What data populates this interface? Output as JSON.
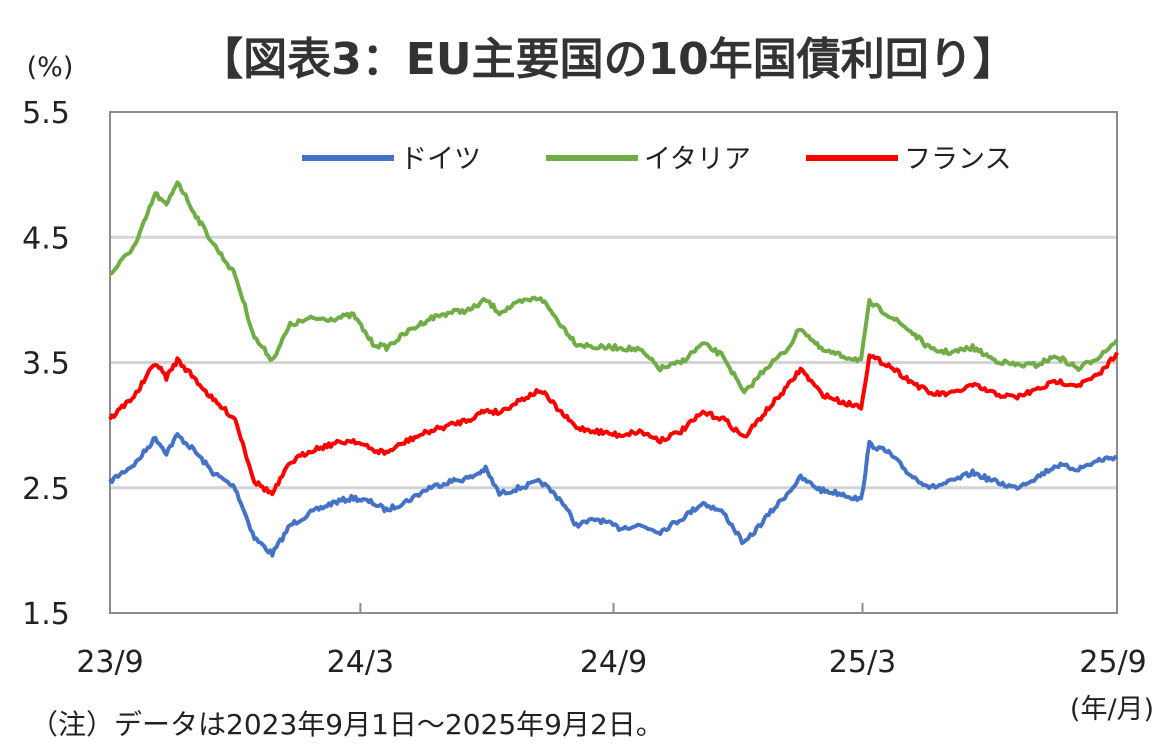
{
  "chart_data": {
    "type": "line",
    "title": "【図表3：EU主要国の10年国債利回り】",
    "y_unit": "(%)",
    "x_unit": "(年/月)",
    "note": "（注）データは2023年9月1日～2025年9月2日。",
    "ylim": [
      1.5,
      5.5
    ],
    "y_ticks": [
      "5.5",
      "4.5",
      "3.5",
      "2.5",
      "1.5"
    ],
    "x_ticks": [
      "23/9",
      "24/3",
      "24/9",
      "25/3",
      "25/9"
    ],
    "x_range": [
      "2023-09-01",
      "2025-09-02"
    ],
    "grid": true,
    "legend_position": "top",
    "series": [
      {
        "name": "ドイツ",
        "color": "#4472C4",
        "points": [
          [
            "2023-09-01",
            2.55
          ],
          [
            "2023-09-20",
            2.7
          ],
          [
            "2023-10-04",
            2.9
          ],
          [
            "2023-10-12",
            2.78
          ],
          [
            "2023-10-20",
            2.92
          ],
          [
            "2023-11-01",
            2.8
          ],
          [
            "2023-11-15",
            2.62
          ],
          [
            "2023-12-01",
            2.5
          ],
          [
            "2023-12-15",
            2.1
          ],
          [
            "2023-12-28",
            1.97
          ],
          [
            "2024-01-10",
            2.2
          ],
          [
            "2024-01-25",
            2.3
          ],
          [
            "2024-02-10",
            2.38
          ],
          [
            "2024-02-25",
            2.42
          ],
          [
            "2024-03-10",
            2.38
          ],
          [
            "2024-03-20",
            2.32
          ],
          [
            "2024-04-05",
            2.4
          ],
          [
            "2024-04-20",
            2.5
          ],
          [
            "2024-05-05",
            2.55
          ],
          [
            "2024-05-20",
            2.58
          ],
          [
            "2024-05-31",
            2.65
          ],
          [
            "2024-06-10",
            2.45
          ],
          [
            "2024-06-25",
            2.5
          ],
          [
            "2024-07-10",
            2.55
          ],
          [
            "2024-07-25",
            2.4
          ],
          [
            "2024-08-05",
            2.2
          ],
          [
            "2024-08-20",
            2.25
          ],
          [
            "2024-09-05",
            2.18
          ],
          [
            "2024-09-20",
            2.2
          ],
          [
            "2024-10-05",
            2.15
          ],
          [
            "2024-10-20",
            2.25
          ],
          [
            "2024-11-05",
            2.38
          ],
          [
            "2024-11-20",
            2.3
          ],
          [
            "2024-12-05",
            2.05
          ],
          [
            "2024-12-20",
            2.25
          ],
          [
            "2025-01-05",
            2.45
          ],
          [
            "2025-01-15",
            2.58
          ],
          [
            "2025-01-30",
            2.48
          ],
          [
            "2025-02-15",
            2.45
          ],
          [
            "2025-02-28",
            2.4
          ],
          [
            "2025-03-06",
            2.85
          ],
          [
            "2025-03-20",
            2.78
          ],
          [
            "2025-04-05",
            2.6
          ],
          [
            "2025-04-20",
            2.5
          ],
          [
            "2025-05-05",
            2.55
          ],
          [
            "2025-05-20",
            2.62
          ],
          [
            "2025-06-05",
            2.55
          ],
          [
            "2025-06-20",
            2.5
          ],
          [
            "2025-07-05",
            2.58
          ],
          [
            "2025-07-20",
            2.68
          ],
          [
            "2025-08-05",
            2.65
          ],
          [
            "2025-08-20",
            2.72
          ],
          [
            "2025-09-02",
            2.75
          ]
        ]
      },
      {
        "name": "イタリア",
        "color": "#70AD47",
        "points": [
          [
            "2023-09-01",
            4.2
          ],
          [
            "2023-09-20",
            4.45
          ],
          [
            "2023-10-04",
            4.85
          ],
          [
            "2023-10-12",
            4.75
          ],
          [
            "2023-10-20",
            4.95
          ],
          [
            "2023-11-01",
            4.7
          ],
          [
            "2023-11-15",
            4.45
          ],
          [
            "2023-12-01",
            4.2
          ],
          [
            "2023-12-15",
            3.7
          ],
          [
            "2023-12-28",
            3.52
          ],
          [
            "2024-01-10",
            3.8
          ],
          [
            "2024-01-25",
            3.85
          ],
          [
            "2024-02-10",
            3.85
          ],
          [
            "2024-02-25",
            3.88
          ],
          [
            "2024-03-10",
            3.65
          ],
          [
            "2024-03-20",
            3.62
          ],
          [
            "2024-04-05",
            3.75
          ],
          [
            "2024-04-20",
            3.85
          ],
          [
            "2024-05-05",
            3.9
          ],
          [
            "2024-05-20",
            3.92
          ],
          [
            "2024-05-31",
            4.0
          ],
          [
            "2024-06-10",
            3.9
          ],
          [
            "2024-06-25",
            3.98
          ],
          [
            "2024-07-10",
            4.02
          ],
          [
            "2024-07-25",
            3.8
          ],
          [
            "2024-08-05",
            3.65
          ],
          [
            "2024-08-20",
            3.62
          ],
          [
            "2024-09-05",
            3.62
          ],
          [
            "2024-09-20",
            3.6
          ],
          [
            "2024-10-05",
            3.45
          ],
          [
            "2024-10-20",
            3.5
          ],
          [
            "2024-11-05",
            3.65
          ],
          [
            "2024-11-20",
            3.55
          ],
          [
            "2024-12-05",
            3.25
          ],
          [
            "2024-12-20",
            3.45
          ],
          [
            "2025-01-05",
            3.6
          ],
          [
            "2025-01-15",
            3.78
          ],
          [
            "2025-01-30",
            3.6
          ],
          [
            "2025-02-15",
            3.55
          ],
          [
            "2025-02-28",
            3.52
          ],
          [
            "2025-03-06",
            3.98
          ],
          [
            "2025-03-20",
            3.88
          ],
          [
            "2025-04-05",
            3.75
          ],
          [
            "2025-04-20",
            3.6
          ],
          [
            "2025-05-05",
            3.58
          ],
          [
            "2025-05-20",
            3.62
          ],
          [
            "2025-06-05",
            3.52
          ],
          [
            "2025-06-20",
            3.48
          ],
          [
            "2025-07-05",
            3.48
          ],
          [
            "2025-07-20",
            3.55
          ],
          [
            "2025-08-05",
            3.45
          ],
          [
            "2025-08-20",
            3.55
          ],
          [
            "2025-09-02",
            3.68
          ]
        ]
      },
      {
        "name": "フランス",
        "color": "#FF0000",
        "points": [
          [
            "2023-09-01",
            3.05
          ],
          [
            "2023-09-20",
            3.25
          ],
          [
            "2023-10-04",
            3.5
          ],
          [
            "2023-10-12",
            3.38
          ],
          [
            "2023-10-20",
            3.52
          ],
          [
            "2023-11-01",
            3.38
          ],
          [
            "2023-11-15",
            3.2
          ],
          [
            "2023-12-01",
            3.05
          ],
          [
            "2023-12-15",
            2.55
          ],
          [
            "2023-12-28",
            2.45
          ],
          [
            "2024-01-10",
            2.7
          ],
          [
            "2024-01-25",
            2.8
          ],
          [
            "2024-02-10",
            2.85
          ],
          [
            "2024-02-25",
            2.88
          ],
          [
            "2024-03-10",
            2.8
          ],
          [
            "2024-03-20",
            2.78
          ],
          [
            "2024-04-05",
            2.88
          ],
          [
            "2024-04-20",
            2.95
          ],
          [
            "2024-05-05",
            3.0
          ],
          [
            "2024-05-20",
            3.05
          ],
          [
            "2024-05-31",
            3.12
          ],
          [
            "2024-06-10",
            3.1
          ],
          [
            "2024-06-25",
            3.2
          ],
          [
            "2024-07-10",
            3.28
          ],
          [
            "2024-07-25",
            3.1
          ],
          [
            "2024-08-05",
            2.98
          ],
          [
            "2024-08-20",
            2.95
          ],
          [
            "2024-09-05",
            2.92
          ],
          [
            "2024-09-20",
            2.95
          ],
          [
            "2024-10-05",
            2.88
          ],
          [
            "2024-10-20",
            2.95
          ],
          [
            "2024-11-05",
            3.1
          ],
          [
            "2024-11-20",
            3.05
          ],
          [
            "2024-12-05",
            2.9
          ],
          [
            "2024-12-20",
            3.1
          ],
          [
            "2025-01-05",
            3.3
          ],
          [
            "2025-01-15",
            3.45
          ],
          [
            "2025-01-30",
            3.25
          ],
          [
            "2025-02-15",
            3.18
          ],
          [
            "2025-02-28",
            3.15
          ],
          [
            "2025-03-06",
            3.55
          ],
          [
            "2025-03-20",
            3.48
          ],
          [
            "2025-04-05",
            3.35
          ],
          [
            "2025-04-20",
            3.25
          ],
          [
            "2025-05-05",
            3.25
          ],
          [
            "2025-05-20",
            3.32
          ],
          [
            "2025-06-05",
            3.25
          ],
          [
            "2025-06-20",
            3.22
          ],
          [
            "2025-07-05",
            3.28
          ],
          [
            "2025-07-20",
            3.35
          ],
          [
            "2025-08-05",
            3.32
          ],
          [
            "2025-08-20",
            3.4
          ],
          [
            "2025-09-02",
            3.58
          ]
        ]
      }
    ]
  }
}
